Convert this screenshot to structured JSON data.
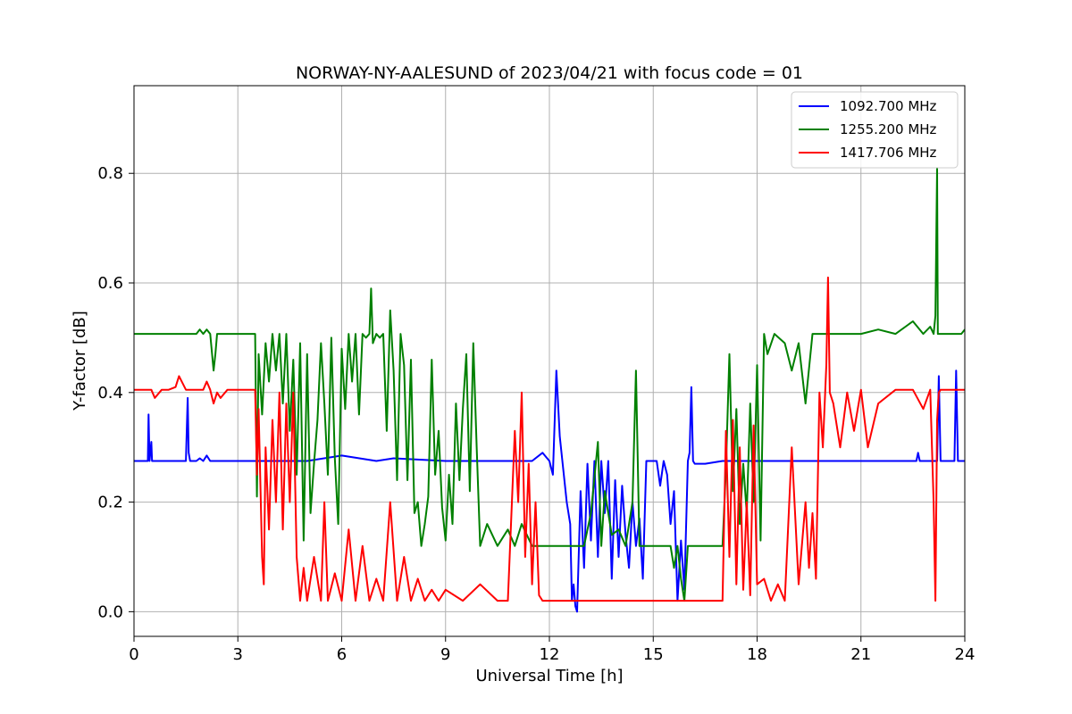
{
  "chart_data": {
    "type": "line",
    "title": "NORWAY-NY-AALESUND of 2023/04/21 with focus code = 01",
    "xlabel": "Universal Time [h]",
    "ylabel": "Y-factor [dB]",
    "xlim": [
      0,
      24
    ],
    "ylim": [
      -0.045,
      0.96
    ],
    "xticks": [
      0,
      3,
      6,
      9,
      12,
      15,
      18,
      21,
      24
    ],
    "yticks": [
      0.0,
      0.2,
      0.4,
      0.6,
      0.8
    ],
    "xtick_labels": [
      "0",
      "3",
      "6",
      "9",
      "12",
      "15",
      "18",
      "21",
      "24"
    ],
    "ytick_labels": [
      "0.0",
      "0.2",
      "0.4",
      "0.6",
      "0.8"
    ],
    "grid": true,
    "legend_position": "top-right",
    "series": [
      {
        "name": "1092.700 MHz",
        "color": "#0000ff",
        "x": [
          0,
          0.3,
          0.4,
          0.42,
          0.45,
          0.5,
          0.52,
          0.55,
          0.6,
          1.5,
          1.55,
          1.58,
          1.62,
          1.7,
          1.8,
          1.9,
          2.0,
          2.1,
          2.2,
          2.3,
          2.4,
          5.0,
          6.0,
          7.0,
          7.5,
          9.0,
          10.0,
          11.0,
          11.3,
          11.5,
          11.8,
          12.0,
          12.1,
          12.2,
          12.3,
          12.4,
          12.5,
          12.6,
          12.65,
          12.7,
          12.75,
          12.8,
          12.9,
          13.0,
          13.1,
          13.2,
          13.3,
          13.4,
          13.5,
          13.6,
          13.7,
          13.8,
          13.9,
          14.0,
          14.1,
          14.2,
          14.3,
          14.4,
          14.5,
          14.6,
          14.7,
          14.8,
          14.9,
          15.0,
          15.1,
          15.2,
          15.3,
          15.4,
          15.5,
          15.6,
          15.7,
          15.8,
          15.9,
          16.0,
          16.05,
          16.1,
          16.15,
          16.2,
          16.5,
          17.0,
          17.2,
          18.0,
          19.0,
          20.0,
          22.0,
          22.6,
          22.65,
          22.7,
          23.0,
          23.2,
          23.25,
          23.3,
          23.4,
          23.5,
          23.7,
          23.75,
          23.8,
          24.0
        ],
        "y": [
          0.275,
          0.275,
          0.275,
          0.36,
          0.275,
          0.31,
          0.275,
          0.275,
          0.275,
          0.275,
          0.39,
          0.29,
          0.275,
          0.275,
          0.275,
          0.28,
          0.275,
          0.285,
          0.275,
          0.275,
          0.275,
          0.275,
          0.285,
          0.275,
          0.28,
          0.275,
          0.275,
          0.275,
          0.275,
          0.275,
          0.29,
          0.275,
          0.25,
          0.44,
          0.32,
          0.26,
          0.2,
          0.16,
          0.02,
          0.05,
          0.01,
          0.0,
          0.22,
          0.08,
          0.27,
          0.13,
          0.275,
          0.1,
          0.275,
          0.18,
          0.275,
          0.06,
          0.24,
          0.1,
          0.23,
          0.14,
          0.08,
          0.2,
          0.12,
          0.17,
          0.06,
          0.275,
          0.275,
          0.275,
          0.275,
          0.23,
          0.275,
          0.25,
          0.16,
          0.22,
          0.02,
          0.13,
          0.04,
          0.275,
          0.29,
          0.41,
          0.275,
          0.27,
          0.27,
          0.275,
          0.275,
          0.275,
          0.275,
          0.275,
          0.275,
          0.275,
          0.29,
          0.275,
          0.275,
          0.275,
          0.43,
          0.275,
          0.275,
          0.275,
          0.275,
          0.44,
          0.275,
          0.275
        ]
      },
      {
        "name": "1255.200 MHz",
        "color": "#008000",
        "x": [
          0,
          1.8,
          1.9,
          2.0,
          2.1,
          2.2,
          2.3,
          2.35,
          2.4,
          2.5,
          3.0,
          3.5,
          3.55,
          3.6,
          3.7,
          3.8,
          3.9,
          4.0,
          4.1,
          4.2,
          4.3,
          4.4,
          4.5,
          4.6,
          4.7,
          4.8,
          4.9,
          5.0,
          5.1,
          5.2,
          5.3,
          5.4,
          5.5,
          5.6,
          5.7,
          5.8,
          5.9,
          6.0,
          6.1,
          6.2,
          6.3,
          6.4,
          6.5,
          6.6,
          6.7,
          6.8,
          6.85,
          6.9,
          7.0,
          7.1,
          7.2,
          7.3,
          7.4,
          7.5,
          7.6,
          7.7,
          7.8,
          7.9,
          8.0,
          8.1,
          8.2,
          8.3,
          8.4,
          8.5,
          8.6,
          8.7,
          8.8,
          8.9,
          9.0,
          9.1,
          9.2,
          9.3,
          9.4,
          9.5,
          9.6,
          9.7,
          9.8,
          9.9,
          10.0,
          10.2,
          10.5,
          10.8,
          11.0,
          11.2,
          11.5,
          11.8,
          12.0,
          12.3,
          12.5,
          12.6,
          12.8,
          13.0,
          13.2,
          13.4,
          13.5,
          13.6,
          13.8,
          14.0,
          14.2,
          14.4,
          14.5,
          14.6,
          14.7,
          14.8,
          15.0,
          15.2,
          15.4,
          15.5,
          15.6,
          15.7,
          15.8,
          15.9,
          16.0,
          16.5,
          17.0,
          17.1,
          17.2,
          17.3,
          17.4,
          17.5,
          17.6,
          17.7,
          17.8,
          17.9,
          18.0,
          18.1,
          18.2,
          18.3,
          18.5,
          18.8,
          19.0,
          19.2,
          19.4,
          19.6,
          19.8,
          20.0,
          20.2,
          20.5,
          21.0,
          21.5,
          22.0,
          22.5,
          22.8,
          23.0,
          23.1,
          23.15,
          23.2,
          23.22,
          23.25,
          23.3,
          23.5,
          23.8,
          23.9,
          24.0
        ],
        "y": [
          0.507,
          0.507,
          0.515,
          0.507,
          0.515,
          0.507,
          0.44,
          0.47,
          0.507,
          0.507,
          0.507,
          0.507,
          0.21,
          0.47,
          0.36,
          0.49,
          0.42,
          0.507,
          0.44,
          0.507,
          0.38,
          0.507,
          0.33,
          0.46,
          0.25,
          0.49,
          0.13,
          0.47,
          0.18,
          0.27,
          0.35,
          0.49,
          0.38,
          0.25,
          0.5,
          0.28,
          0.16,
          0.48,
          0.37,
          0.507,
          0.42,
          0.507,
          0.36,
          0.507,
          0.5,
          0.507,
          0.59,
          0.49,
          0.507,
          0.5,
          0.507,
          0.33,
          0.55,
          0.44,
          0.24,
          0.507,
          0.45,
          0.24,
          0.46,
          0.18,
          0.2,
          0.12,
          0.16,
          0.21,
          0.46,
          0.25,
          0.33,
          0.19,
          0.13,
          0.25,
          0.16,
          0.38,
          0.24,
          0.37,
          0.47,
          0.22,
          0.49,
          0.3,
          0.12,
          0.16,
          0.12,
          0.15,
          0.12,
          0.16,
          0.12,
          0.12,
          0.12,
          0.12,
          0.12,
          0.12,
          0.12,
          0.12,
          0.18,
          0.31,
          0.12,
          0.22,
          0.14,
          0.15,
          0.12,
          0.2,
          0.44,
          0.12,
          0.12,
          0.12,
          0.12,
          0.12,
          0.12,
          0.12,
          0.08,
          0.12,
          0.06,
          0.02,
          0.12,
          0.12,
          0.12,
          0.26,
          0.47,
          0.22,
          0.37,
          0.16,
          0.27,
          0.18,
          0.38,
          0.2,
          0.45,
          0.13,
          0.507,
          0.47,
          0.507,
          0.49,
          0.44,
          0.49,
          0.38,
          0.507,
          0.507,
          0.507,
          0.507,
          0.507,
          0.507,
          0.515,
          0.507,
          0.53,
          0.507,
          0.52,
          0.507,
          0.54,
          0.81,
          0.507,
          0.507,
          0.507,
          0.507,
          0.507,
          0.507,
          0.515
        ]
      },
      {
        "name": "1417.706 MHz",
        "color": "#ff0000",
        "x": [
          0,
          0.5,
          0.6,
          0.8,
          1.0,
          1.2,
          1.3,
          1.5,
          1.8,
          2.0,
          2.1,
          2.2,
          2.3,
          2.4,
          2.5,
          2.7,
          3.0,
          3.3,
          3.5,
          3.55,
          3.6,
          3.7,
          3.75,
          3.8,
          3.9,
          4.0,
          4.1,
          4.2,
          4.3,
          4.4,
          4.5,
          4.6,
          4.7,
          4.8,
          4.9,
          5.0,
          5.2,
          5.4,
          5.5,
          5.6,
          5.8,
          6.0,
          6.2,
          6.4,
          6.6,
          6.8,
          7.0,
          7.2,
          7.4,
          7.6,
          7.8,
          8.0,
          8.2,
          8.4,
          8.6,
          8.8,
          9.0,
          9.5,
          10.0,
          10.5,
          10.8,
          11.0,
          11.1,
          11.2,
          11.3,
          11.4,
          11.5,
          11.6,
          11.7,
          11.8,
          12.0,
          12.5,
          13.0,
          13.5,
          14.0,
          14.5,
          15.0,
          15.5,
          16.0,
          16.5,
          17.0,
          17.1,
          17.2,
          17.3,
          17.4,
          17.5,
          17.6,
          17.7,
          17.8,
          17.9,
          18.0,
          18.2,
          18.4,
          18.6,
          18.8,
          19.0,
          19.2,
          19.4,
          19.5,
          19.6,
          19.7,
          19.8,
          19.9,
          20.0,
          20.05,
          20.1,
          20.2,
          20.4,
          20.6,
          20.8,
          21.0,
          21.2,
          21.5,
          22.0,
          22.5,
          22.8,
          23.0,
          23.1,
          23.15,
          23.2,
          23.25,
          23.3,
          23.5,
          23.8,
          24.0
        ],
        "y": [
          0.405,
          0.405,
          0.39,
          0.405,
          0.405,
          0.41,
          0.43,
          0.405,
          0.405,
          0.405,
          0.42,
          0.405,
          0.38,
          0.4,
          0.39,
          0.405,
          0.405,
          0.405,
          0.405,
          0.25,
          0.37,
          0.1,
          0.05,
          0.3,
          0.15,
          0.35,
          0.2,
          0.4,
          0.15,
          0.38,
          0.2,
          0.4,
          0.1,
          0.02,
          0.08,
          0.02,
          0.1,
          0.02,
          0.2,
          0.02,
          0.07,
          0.02,
          0.15,
          0.02,
          0.12,
          0.02,
          0.06,
          0.02,
          0.2,
          0.02,
          0.1,
          0.02,
          0.06,
          0.02,
          0.04,
          0.02,
          0.04,
          0.02,
          0.05,
          0.02,
          0.02,
          0.33,
          0.2,
          0.4,
          0.1,
          0.27,
          0.05,
          0.2,
          0.03,
          0.02,
          0.02,
          0.02,
          0.02,
          0.02,
          0.02,
          0.02,
          0.02,
          0.02,
          0.02,
          0.02,
          0.02,
          0.33,
          0.1,
          0.35,
          0.05,
          0.3,
          0.04,
          0.2,
          0.03,
          0.34,
          0.05,
          0.06,
          0.02,
          0.05,
          0.02,
          0.3,
          0.05,
          0.2,
          0.08,
          0.18,
          0.06,
          0.4,
          0.3,
          0.45,
          0.61,
          0.4,
          0.38,
          0.3,
          0.4,
          0.33,
          0.405,
          0.3,
          0.38,
          0.405,
          0.405,
          0.37,
          0.405,
          0.2,
          0.02,
          0.35,
          0.4,
          0.405,
          0.405,
          0.405,
          0.405
        ]
      }
    ]
  }
}
